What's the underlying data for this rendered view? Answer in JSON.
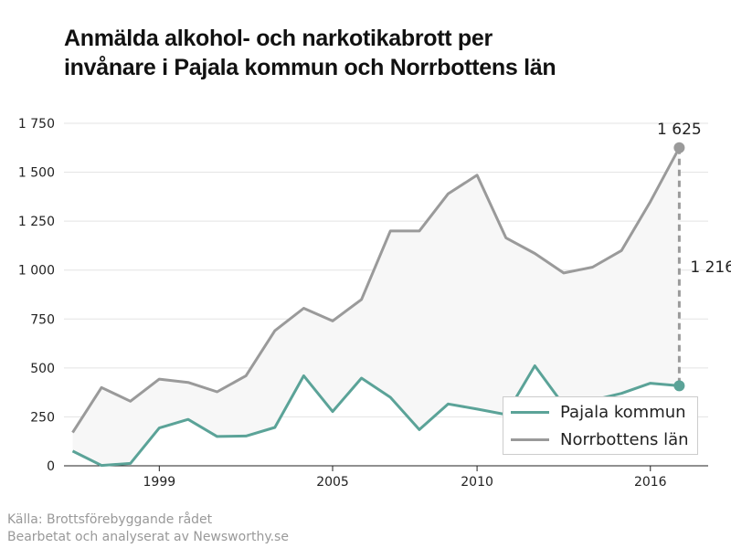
{
  "title": {
    "line1": "Anmälda alkohol- och narkotikabrott per",
    "line2": "invånare i Pajala kommun och Norrbottens län"
  },
  "source": {
    "line1": "Källa: Brottsförebyggande rådet",
    "line2": "Bearbetat och analyserat av Newsworthy.se"
  },
  "colors": {
    "pajala": "#5ba398",
    "norrbotten": "#9a9a9a",
    "fill": "#f7f7f7",
    "grid": "#e3e3e3"
  },
  "chart_data": {
    "type": "line",
    "x": [
      1996,
      1997,
      1998,
      1999,
      2000,
      2001,
      2002,
      2003,
      2004,
      2005,
      2006,
      2007,
      2008,
      2009,
      2010,
      2011,
      2012,
      2013,
      2014,
      2015,
      2016,
      2017
    ],
    "x_ticks": [
      1999,
      2005,
      2010,
      2016
    ],
    "x_tick_labels": [
      "1999",
      "2005",
      "2010",
      "2016"
    ],
    "y_ticks": [
      0,
      250,
      500,
      750,
      1000,
      1250,
      1500,
      1750
    ],
    "y_tick_labels": [
      "0",
      "250",
      "500",
      "750",
      "1 000",
      "1 250",
      "1 500",
      "1 750"
    ],
    "ylim": [
      0,
      1750
    ],
    "xlim": [
      1995.7,
      2018.0
    ],
    "grid": true,
    "legend": "bottom-right",
    "series": [
      {
        "name": "Pajala kommun",
        "values": [
          75,
          2,
          12,
          193,
          237,
          150,
          152,
          196,
          460,
          277,
          448,
          350,
          185,
          316,
          290,
          262,
          511,
          310,
          335,
          370,
          422,
          409
        ]
      },
      {
        "name": "Norrbottens län",
        "values": [
          170,
          400,
          330,
          443,
          426,
          378,
          460,
          690,
          805,
          740,
          850,
          1200,
          1200,
          1390,
          1485,
          1165,
          1085,
          985,
          1015,
          1100,
          1350,
          1625
        ]
      }
    ],
    "annotations": {
      "end_norrbotten": "1 625",
      "difference": "1 216",
      "end_pajala": "409"
    }
  }
}
